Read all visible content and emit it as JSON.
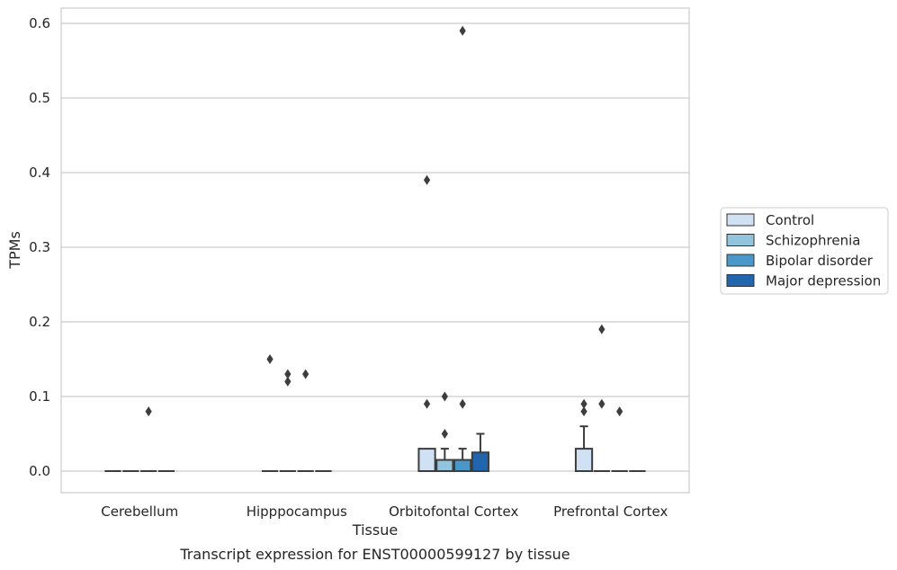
{
  "chart_data": {
    "type": "box",
    "caption": "Transcript expression for ENST00000599127 by tissue",
    "xlabel": "Tissue",
    "ylabel": "TPMs",
    "ylim": [
      -0.029,
      0.62
    ],
    "yticks": [
      0.0,
      0.1,
      0.2,
      0.3,
      0.4,
      0.5,
      0.6
    ],
    "ytick_labels": [
      "0.0",
      "0.1",
      "0.2",
      "0.3",
      "0.4",
      "0.5",
      "0.6"
    ],
    "grid": "horizontal",
    "legend_position": "right",
    "categories": [
      "Cerebellum",
      "Hipppocampus",
      "Orbitofontal Cortex",
      "Prefrontal Cortex"
    ],
    "series": [
      {
        "name": "Control",
        "color": "#cfe1f2",
        "boxes": [
          {
            "q1": 0,
            "median": 0,
            "q3": 0,
            "whislo": 0,
            "whishi": 0,
            "fliers": []
          },
          {
            "q1": 0,
            "median": 0,
            "q3": 0,
            "whislo": 0,
            "whishi": 0,
            "fliers": []
          },
          {
            "q1": 0,
            "median": 0,
            "q3": 0.03,
            "whislo": 0,
            "whishi": 0.03,
            "fliers": [
              0.09,
              0.39
            ]
          },
          {
            "q1": 0,
            "median": 0,
            "q3": 0.03,
            "whislo": 0,
            "whishi": 0.06,
            "fliers": [
              0.08,
              0.09
            ]
          }
        ]
      },
      {
        "name": "Schizophrenia",
        "color": "#93c4de",
        "boxes": [
          {
            "q1": 0,
            "median": 0,
            "q3": 0,
            "whislo": 0,
            "whishi": 0,
            "fliers": []
          },
          {
            "q1": 0,
            "median": 0,
            "q3": 0,
            "whislo": 0,
            "whishi": 0,
            "fliers": [
              0.12,
              0.13
            ]
          },
          {
            "q1": 0,
            "median": 0,
            "q3": 0.015,
            "whislo": 0,
            "whishi": 0.03,
            "fliers": [
              0.05,
              0.1
            ]
          },
          {
            "q1": 0,
            "median": 0,
            "q3": 0,
            "whislo": 0,
            "whishi": 0,
            "fliers": [
              0.09,
              0.19
            ]
          }
        ]
      },
      {
        "name": "Bipolar disorder",
        "color": "#4a98c9",
        "boxes": [
          {
            "q1": 0,
            "median": 0,
            "q3": 0,
            "whislo": 0,
            "whishi": 0,
            "fliers": [
              0.08
            ]
          },
          {
            "q1": 0,
            "median": 0,
            "q3": 0,
            "whislo": 0,
            "whishi": 0,
            "fliers": [
              0.13
            ]
          },
          {
            "q1": 0,
            "median": 0,
            "q3": 0.015,
            "whislo": 0,
            "whishi": 0.03,
            "fliers": [
              0.09,
              0.59
            ]
          },
          {
            "q1": 0,
            "median": 0,
            "q3": 0,
            "whislo": 0,
            "whishi": 0,
            "fliers": [
              0.08
            ]
          }
        ]
      },
      {
        "name": "Major depression",
        "color": "#2166ac",
        "boxes": [
          {
            "q1": 0,
            "median": 0,
            "q3": 0,
            "whislo": 0,
            "whishi": 0,
            "fliers": []
          },
          {
            "q1": 0,
            "median": 0,
            "q3": 0,
            "whislo": 0,
            "whishi": 0,
            "fliers": []
          },
          {
            "q1": 0,
            "median": 0,
            "q3": 0.025,
            "whislo": 0,
            "whishi": 0.05,
            "fliers": []
          },
          {
            "q1": 0,
            "median": 0,
            "q3": 0,
            "whislo": 0,
            "whishi": 0,
            "fliers": []
          }
        ]
      }
    ],
    "extra_fliers": [
      {
        "category": 1,
        "series": 0,
        "value": 0.15
      }
    ]
  }
}
